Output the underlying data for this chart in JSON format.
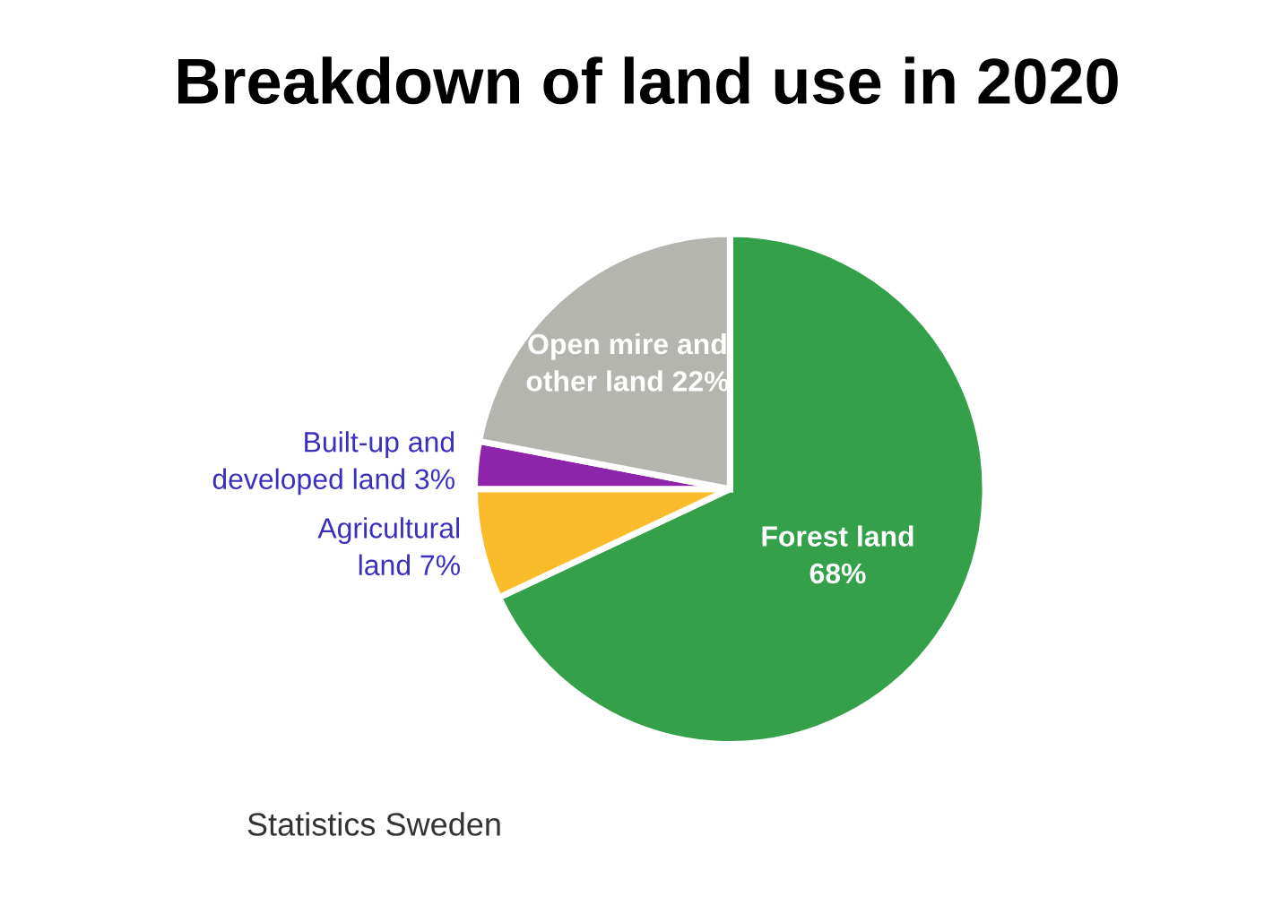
{
  "chart_data": {
    "type": "pie",
    "title": "Breakdown of land use in 2020",
    "categories": [
      "Forest land",
      "Agricultural\nland",
      "Built-up and\ndeveloped land",
      "Open mire and\nother land"
    ],
    "values": [
      68,
      7,
      3,
      22
    ],
    "colors": [
      "#34a04a",
      "#fbbc2c",
      "#8e24aa",
      "#b5b5b0"
    ],
    "value_labels": [
      "68%",
      "7%",
      "3%",
      "22%"
    ],
    "annotations": [
      "Statistics Sweden"
    ]
  }
}
